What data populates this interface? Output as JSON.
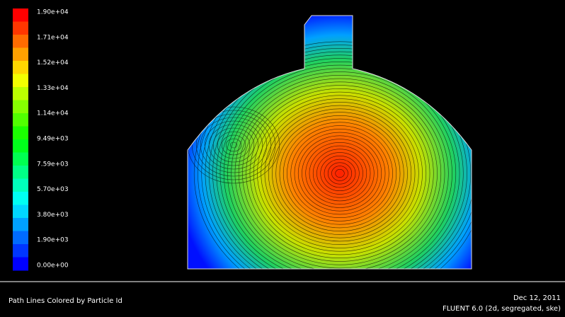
{
  "colorbar": {
    "labels": [
      "1.90e+04",
      "1.71e+04",
      "1.52e+04",
      "1.33e+04",
      "1.14e+04",
      "9.49e+03",
      "7.59e+03",
      "5.70e+03",
      "3.80e+03",
      "1.90e+03",
      "0.00e+00"
    ]
  },
  "footer": {
    "title": "Path Lines Colored by Particle Id",
    "date": "Dec 12, 2011",
    "solver": "FLUENT 6.0 (2d, segregated, ske)"
  }
}
